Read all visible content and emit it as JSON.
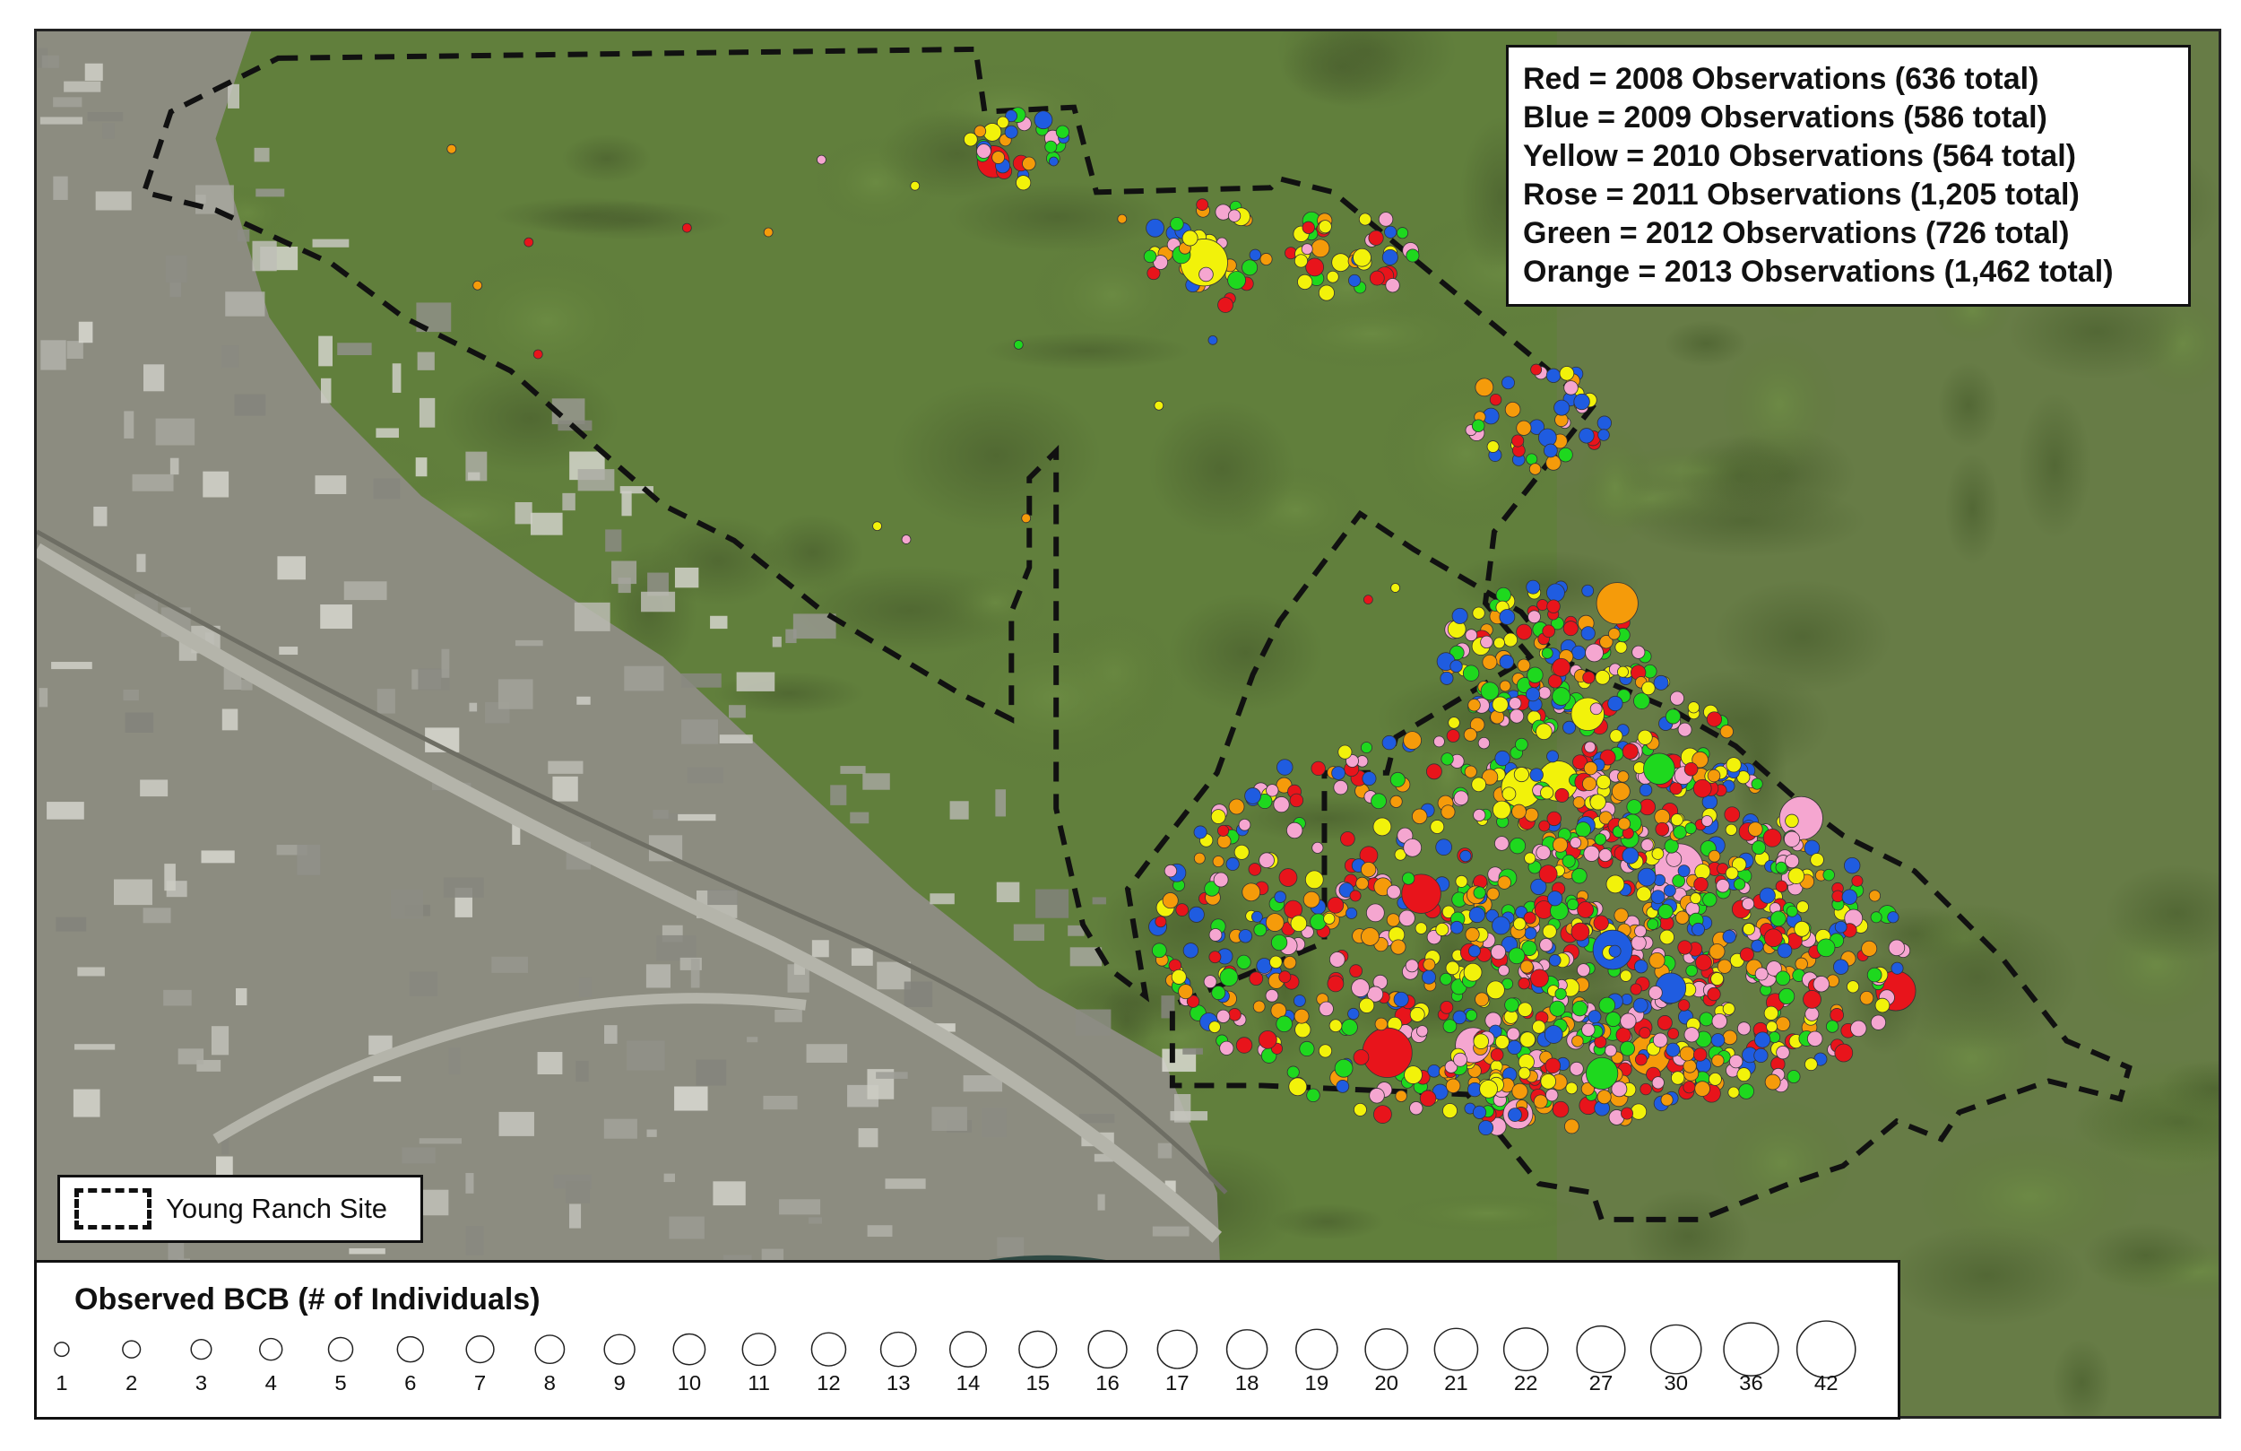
{
  "year_legend": {
    "rows": [
      "Red = 2008 Observations (636 total)",
      "Blue = 2009 Observations (586 total)",
      "Yellow = 2010 Observations (564 total)",
      "Rose = 2011 Observations (1,205 total)",
      "Green = 2012 Observations (726 total)",
      "Orange = 2013 Observations (1,462 total)"
    ]
  },
  "site_legend": {
    "label": "Young Ranch Site"
  },
  "size_legend": {
    "title": "Observed BCB (# of Individuals)",
    "values": [
      "1",
      "2",
      "3",
      "4",
      "5",
      "6",
      "7",
      "8",
      "9",
      "10",
      "11",
      "12",
      "13",
      "14",
      "15",
      "16",
      "17",
      "18",
      "19",
      "20",
      "21",
      "22",
      "27",
      "30",
      "36",
      "42"
    ]
  },
  "colors": {
    "red": "#e8141b",
    "blue": "#1f5ce0",
    "yellow": "#f2f20a",
    "rose": "#f5a6d0",
    "green": "#1ed81e",
    "orange": "#f59b0a"
  }
}
